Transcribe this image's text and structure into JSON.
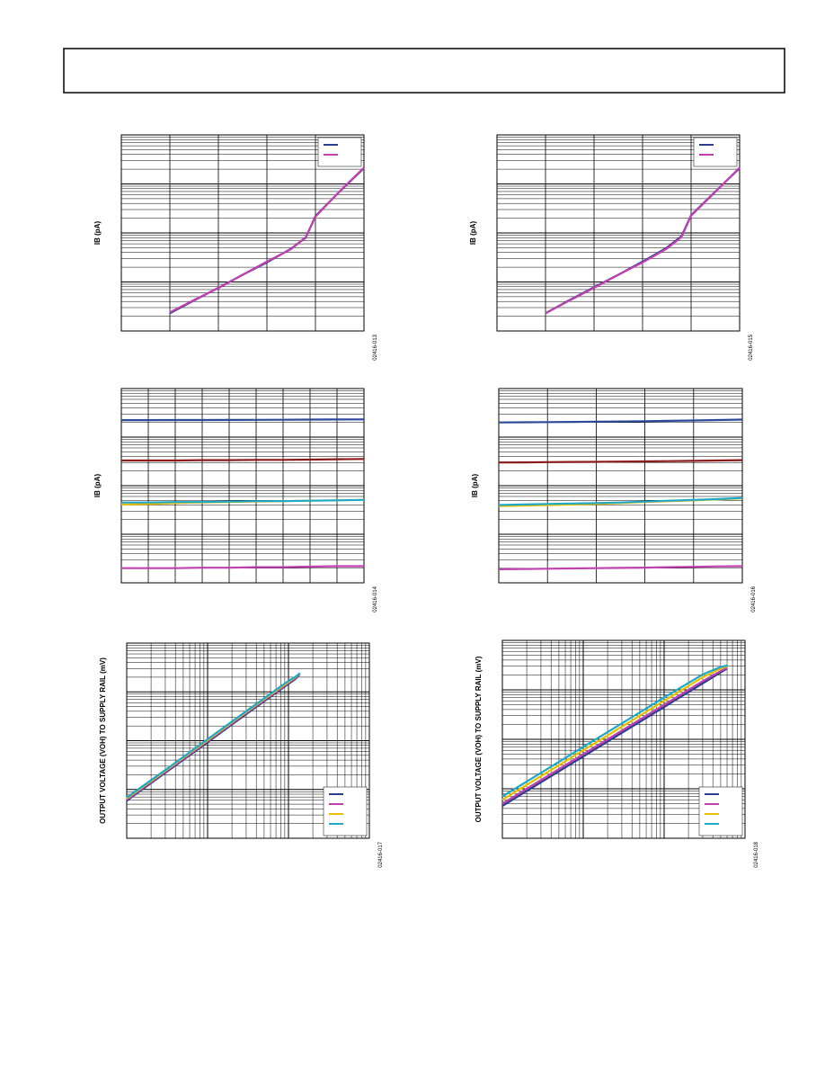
{
  "chart_data": [
    {
      "type": "line",
      "ylabel": "IB (pA)",
      "figure_code": "02416-013",
      "xlim": [
        0,
        5
      ],
      "xdivisions": 5,
      "ylim": [
        1,
        10000
      ],
      "ylog": true,
      "legend": "upper right",
      "x": [
        1,
        1.5,
        2,
        2.5,
        3,
        3.5,
        3.8,
        4,
        4.5,
        5
      ],
      "series": [
        {
          "color": "#2b3b8f",
          "values": [
            2.3,
            4.2,
            7.6,
            14,
            25,
            48,
            80,
            220,
            700,
            2100
          ]
        },
        {
          "color": "#c040b0",
          "values": [
            2.4,
            4.3,
            7.5,
            14,
            26,
            47,
            82,
            215,
            710,
            2150
          ]
        }
      ]
    },
    {
      "type": "line",
      "ylabel": "IB (pA)",
      "figure_code": "02416-015",
      "xlim": [
        0,
        5
      ],
      "xdivisions": 5,
      "ylim": [
        1,
        10000
      ],
      "ylog": true,
      "legend": "upper right",
      "x": [
        1,
        1.5,
        2,
        2.5,
        3,
        3.5,
        3.8,
        4,
        4.5,
        5
      ],
      "series": [
        {
          "color": "#2b3b8f",
          "values": [
            2.3,
            4.3,
            7.8,
            14,
            26,
            50,
            85,
            230,
            700,
            2100
          ]
        },
        {
          "color": "#c040b0",
          "values": [
            2.3,
            4.2,
            7.6,
            14,
            25,
            48,
            82,
            225,
            690,
            2150
          ]
        }
      ]
    },
    {
      "type": "line",
      "ylabel": "IB (pA)",
      "figure_code": "02416-014",
      "xlim": [
        0,
        9
      ],
      "xdivisions": 9,
      "ylim": [
        1,
        10000
      ],
      "ylog": true,
      "x": [
        0,
        1,
        2,
        3,
        4,
        5,
        6,
        7,
        8,
        9
      ],
      "series": [
        {
          "color": "#2b4a9a",
          "values": [
            2240,
            2240,
            2250,
            2250,
            2260,
            2270,
            2280,
            2300,
            2310,
            2320
          ]
        },
        {
          "color": "#8b1a1a",
          "values": [
            330,
            330,
            330,
            335,
            335,
            340,
            340,
            345,
            350,
            355
          ]
        },
        {
          "color": "#e8c000",
          "values": [
            41,
            42,
            44,
            45,
            46,
            47,
            48,
            49,
            50,
            51
          ]
        },
        {
          "color": "#20a8c8",
          "values": [
            45,
            45,
            46,
            46,
            47,
            48,
            48,
            49,
            50,
            51
          ]
        },
        {
          "color": "#c040b0",
          "values": [
            2.0,
            2.0,
            2.0,
            2.05,
            2.05,
            2.1,
            2.1,
            2.15,
            2.2,
            2.2
          ]
        }
      ]
    },
    {
      "type": "line",
      "ylabel": "IB (pA)",
      "figure_code": "02416-016",
      "xlim": [
        0,
        5
      ],
      "xdivisions": 5,
      "ylim": [
        1,
        10000
      ],
      "ylog": true,
      "x": [
        0,
        0.5,
        1,
        1.5,
        2,
        2.5,
        3,
        3.5,
        4,
        4.5,
        5
      ],
      "series": [
        {
          "color": "#2b4a9a",
          "values": [
            2000,
            2020,
            2040,
            2060,
            2080,
            2100,
            2130,
            2160,
            2200,
            2250,
            2300
          ]
        },
        {
          "color": "#8b1a1a",
          "values": [
            300,
            302,
            305,
            308,
            310,
            313,
            316,
            320,
            325,
            330,
            335
          ]
        },
        {
          "color": "#e8c000",
          "values": [
            38,
            39,
            40,
            41,
            42,
            44,
            46,
            48,
            50,
            52,
            55
          ]
        },
        {
          "color": "#20a8c8",
          "values": [
            40,
            41,
            42,
            43,
            44,
            45,
            47,
            49,
            51,
            53,
            56
          ]
        },
        {
          "color": "#c040b0",
          "values": [
            1.9,
            1.92,
            1.95,
            1.98,
            2.0,
            2.03,
            2.06,
            2.1,
            2.14,
            2.18,
            2.2
          ]
        }
      ]
    },
    {
      "type": "line",
      "ylabel": "OUTPUT VOLTAGE (VOH) TO SUPPLY RAIL (mV)",
      "figure_code": "02416-017",
      "xlim": [
        1,
        1000
      ],
      "xlog": true,
      "ylim": [
        1,
        10000
      ],
      "ylog": true,
      "legend": "lower right",
      "x": [
        1,
        3,
        10,
        30,
        100,
        120,
        130,
        135,
        138
      ],
      "series": [
        {
          "color": "#2b3b8f",
          "values": [
            5.9,
            22,
            93,
            350,
            1460,
            1800,
            2050,
            2200,
            2300
          ]
        },
        {
          "color": "#c040b0",
          "values": [
            6.2,
            23,
            98,
            370,
            1530,
            1880,
            2120,
            2250,
            2350
          ]
        },
        {
          "color": "#e8c000",
          "values": [
            6.5,
            24,
            102,
            385,
            1600,
            1950,
            2180,
            2300,
            2400
          ]
        },
        {
          "color": "#20a8c8",
          "values": [
            6.8,
            25,
            107,
            400,
            1680,
            2000,
            2220,
            2350,
            2450
          ]
        }
      ]
    },
    {
      "type": "line",
      "ylabel": "OUTPUT VOLTAGE (VOH) TO SUPPLY RAIL (mV)",
      "figure_code": "02416-018",
      "xlim": [
        1,
        1000
      ],
      "xlog": true,
      "ylim": [
        1,
        10000
      ],
      "ylog": true,
      "legend": "lower right",
      "x": [
        1,
        3,
        10,
        30,
        100,
        300,
        500,
        600
      ],
      "series": [
        {
          "color": "#2b3b8f",
          "values": [
            4.5,
            13.5,
            45,
            135,
            450,
            1350,
            2250,
            2700
          ]
        },
        {
          "color": "#c040b0",
          "values": [
            5,
            15,
            50,
            150,
            500,
            1500,
            2400,
            2800
          ]
        },
        {
          "color": "#e8c000",
          "values": [
            6,
            18,
            60,
            180,
            600,
            1800,
            2700,
            3000
          ]
        },
        {
          "color": "#20a8c8",
          "values": [
            7,
            21,
            70,
            210,
            700,
            2050,
            2900,
            3100
          ]
        }
      ]
    }
  ]
}
